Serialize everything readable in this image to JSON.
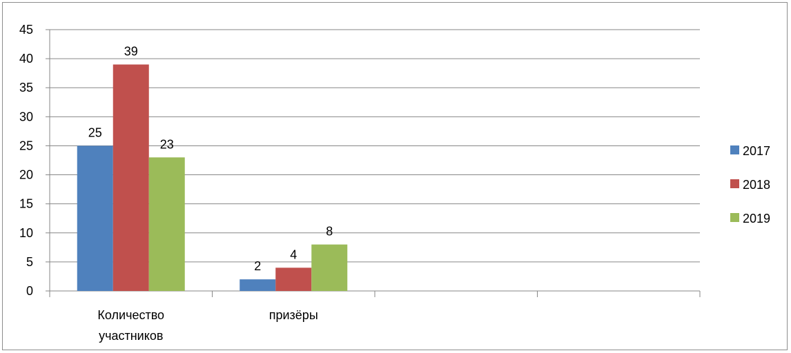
{
  "chart_data": {
    "type": "bar",
    "categories": [
      [
        "Количество",
        "участников"
      ],
      [
        "призёры"
      ],
      [],
      []
    ],
    "series": [
      {
        "name": "2017",
        "color": "#4f81bd",
        "values": [
          25,
          2,
          null,
          null
        ]
      },
      {
        "name": "2018",
        "color": "#c0504d",
        "values": [
          39,
          4,
          null,
          null
        ]
      },
      {
        "name": "2019",
        "color": "#9bbb59",
        "values": [
          23,
          8,
          null,
          null
        ]
      }
    ],
    "data_labels": true,
    "title": "",
    "xlabel": "",
    "ylabel": "",
    "ylim": [
      0,
      45
    ],
    "yticks": [
      0,
      5,
      10,
      15,
      20,
      25,
      30,
      35,
      40,
      45
    ],
    "grid": true,
    "legend_position": "right"
  }
}
